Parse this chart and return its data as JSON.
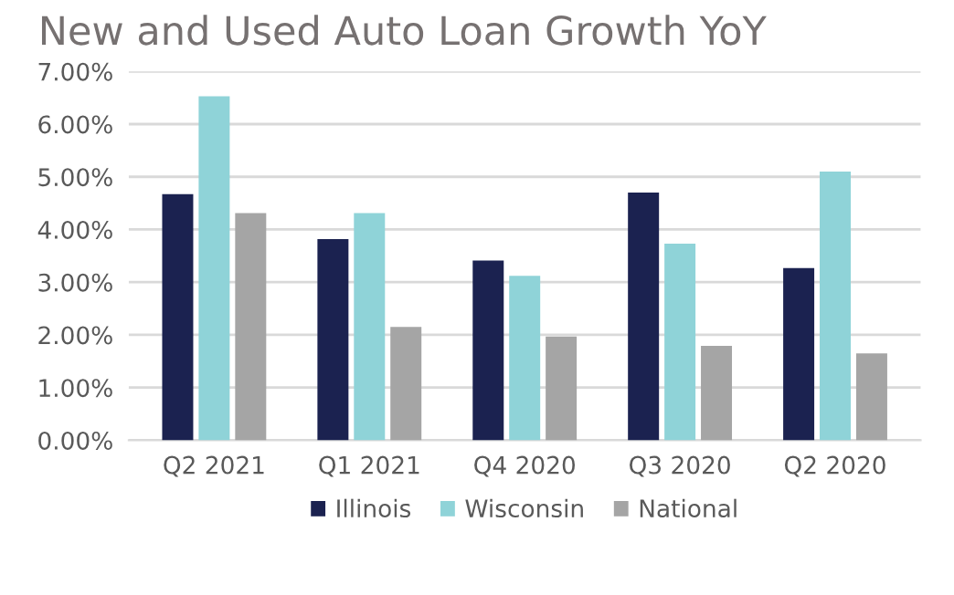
{
  "chart_data": {
    "type": "bar",
    "title": "New and Used Auto Loan Growth YoY",
    "categories": [
      "Q2 2021",
      "Q1 2021",
      "Q4 2020",
      "Q3 2020",
      "Q2 2020"
    ],
    "series": [
      {
        "name": "Illinois",
        "color": "#1b2250",
        "values": [
          4.67,
          3.82,
          3.41,
          4.7,
          3.27
        ]
      },
      {
        "name": "Wisconsin",
        "color": "#8fd3d8",
        "values": [
          6.53,
          4.31,
          3.12,
          3.73,
          5.1
        ]
      },
      {
        "name": "National",
        "color": "#a5a5a5",
        "values": [
          4.31,
          2.15,
          1.97,
          1.79,
          1.65
        ]
      }
    ],
    "ylim": [
      0,
      7
    ],
    "yticks": [
      {
        "value": 0,
        "label": "0.00%"
      },
      {
        "value": 1,
        "label": "1.00%"
      },
      {
        "value": 2,
        "label": "2.00%"
      },
      {
        "value": 3,
        "label": "3.00%"
      },
      {
        "value": 4,
        "label": "4.00%"
      },
      {
        "value": 5,
        "label": "5.00%"
      },
      {
        "value": 6,
        "label": "6.00%"
      },
      {
        "value": 7,
        "label": "7.00%"
      }
    ],
    "grid": "y",
    "legend": "bottom"
  }
}
